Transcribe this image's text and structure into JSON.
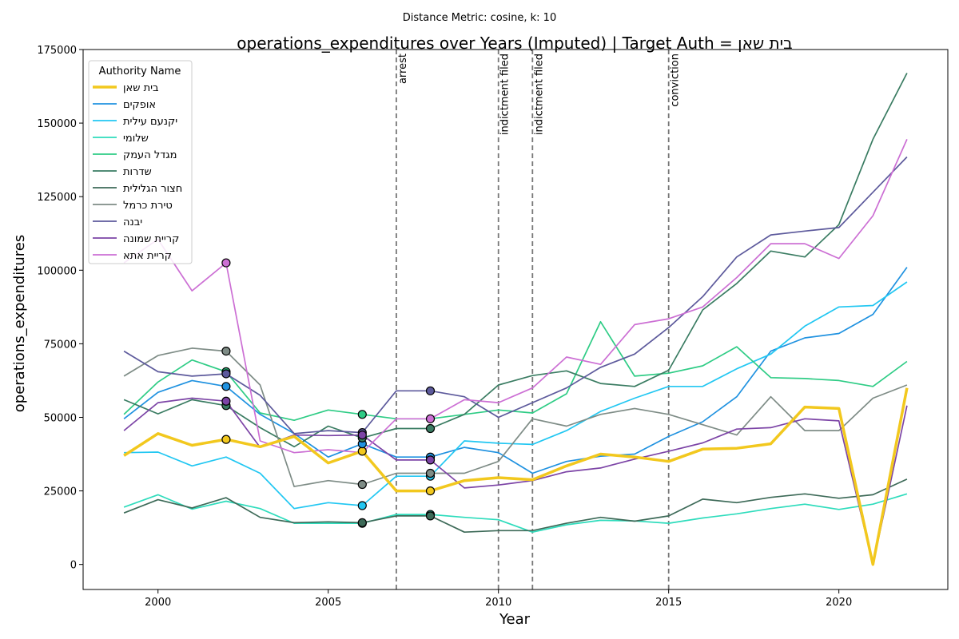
{
  "chart_data": {
    "type": "line",
    "suptitle": "Distance Metric: cosine, k: 10",
    "title": "operations_expenditures over Years (Imputed) | Target Auth = בית שאן",
    "xlabel": "Year",
    "ylabel": "operations_expenditures",
    "xlim": [
      1997.8,
      2023.2
    ],
    "ylim": [
      -8500,
      175000
    ],
    "xticks": [
      2000,
      2005,
      2010,
      2015,
      2020
    ],
    "yticks": [
      0,
      25000,
      50000,
      75000,
      100000,
      125000,
      150000,
      175000
    ],
    "grid": false,
    "legend": {
      "title": "Authority Name",
      "placement": "upper-left"
    },
    "x": [
      1999,
      2000,
      2001,
      2002,
      2003,
      2004,
      2005,
      2006,
      2007,
      2008,
      2009,
      2010,
      2011,
      2012,
      2013,
      2014,
      2015,
      2016,
      2017,
      2018,
      2019,
      2020,
      2021,
      2022
    ],
    "events": [
      {
        "x": 2007,
        "label": "arrest"
      },
      {
        "x": 2010,
        "label": "indictment filed"
      },
      {
        "x": 2011,
        "label": "indictment filed"
      },
      {
        "x": 2015,
        "label": "conviction"
      }
    ],
    "series": [
      {
        "name": "בית שאן",
        "color": "#f2c81e",
        "width": 3.5,
        "target": true,
        "values": [
          37000,
          44500,
          40500,
          42500,
          40000,
          43500,
          34500,
          38500,
          25000,
          25000,
          28500,
          29500,
          28800,
          33500,
          37500,
          36500,
          35000,
          39200,
          39500,
          41000,
          53500,
          53000,
          0,
          60000
        ],
        "markers": [
          {
            "x": 2002,
            "y": 42500
          },
          {
            "x": 2006,
            "y": 38500
          },
          {
            "x": 2008,
            "y": 25000
          }
        ]
      },
      {
        "name": "אופקים",
        "color": "#2092e0",
        "values": [
          49500,
          58500,
          62500,
          60500,
          51000,
          44500,
          36500,
          41000,
          36500,
          36500,
          39800,
          38000,
          31000,
          35000,
          36800,
          37500,
          43500,
          48500,
          57000,
          72500,
          77000,
          78500,
          85000,
          101000
        ],
        "markers": [
          {
            "x": 2002,
            "y": 60500
          },
          {
            "x": 2006,
            "y": 41000
          },
          {
            "x": 2008,
            "y": 36500
          }
        ]
      },
      {
        "name": "יקנעם עילית",
        "color": "#22c7f2",
        "values": [
          38000,
          38200,
          33500,
          36500,
          31000,
          19000,
          21000,
          20000,
          30000,
          30000,
          42000,
          41200,
          40800,
          45500,
          52000,
          56500,
          60500,
          60500,
          66500,
          71500,
          81000,
          87500,
          88000,
          96000
        ],
        "markers": [
          {
            "x": 2006,
            "y": 20000
          },
          {
            "x": 2008,
            "y": 30000
          }
        ]
      },
      {
        "name": "שלומי",
        "color": "#2edcbc",
        "values": [
          19500,
          23700,
          18800,
          21500,
          19000,
          14000,
          14000,
          14000,
          17000,
          17000,
          16000,
          15200,
          11000,
          13500,
          15000,
          14800,
          14000,
          15800,
          17200,
          19000,
          20500,
          18700,
          20500,
          24000
        ],
        "markers": [
          {
            "x": 2006,
            "y": 14000
          },
          {
            "x": 2008,
            "y": 17000
          }
        ]
      },
      {
        "name": "מגדל העמק",
        "color": "#2ecc85",
        "values": [
          51000,
          62000,
          69500,
          65500,
          51500,
          49000,
          52500,
          51000,
          49500,
          49500,
          51000,
          52500,
          51500,
          58000,
          82500,
          64000,
          65000,
          67500,
          74000,
          63500,
          63200,
          62500,
          60500,
          69000
        ],
        "markers": [
          {
            "x": 2002,
            "y": 65500
          },
          {
            "x": 2006,
            "y": 51000
          }
        ]
      },
      {
        "name": "שדרות",
        "color": "#3a7c62",
        "values": [
          56000,
          51200,
          56000,
          54000,
          46500,
          40000,
          47000,
          43000,
          46200,
          46200,
          51000,
          61000,
          64200,
          65800,
          61500,
          60500,
          66000,
          86500,
          95500,
          106500,
          104500,
          115500,
          144500,
          167000
        ],
        "markers": [
          {
            "x": 2002,
            "y": 54000
          },
          {
            "x": 2006,
            "y": 43000
          },
          {
            "x": 2008,
            "y": 46200
          }
        ]
      },
      {
        "name": "חצור הגלילית",
        "color": "#3d6a58",
        "values": [
          17500,
          22000,
          19200,
          22700,
          16000,
          14200,
          14500,
          14200,
          16500,
          16500,
          11000,
          11500,
          11500,
          14000,
          16000,
          14700,
          16500,
          22200,
          21000,
          22800,
          24000,
          22500,
          23700,
          29000
        ],
        "markers": [
          {
            "x": 2006,
            "y": 14200
          },
          {
            "x": 2008,
            "y": 16500
          }
        ]
      },
      {
        "name": "טירת כרמל",
        "color": "#7e8c86",
        "values": [
          64000,
          71000,
          73500,
          72500,
          61000,
          26500,
          28500,
          27200,
          31000,
          31000,
          31000,
          35000,
          49500,
          47000,
          51000,
          53000,
          51000,
          47500,
          44000,
          57000,
          45500,
          45500,
          56500,
          61000
        ],
        "markers": [
          {
            "x": 2002,
            "y": 72500
          },
          {
            "x": 2006,
            "y": 27200
          },
          {
            "x": 2008,
            "y": 31000
          }
        ]
      },
      {
        "name": "יבנה",
        "color": "#5d5a9c",
        "values": [
          72500,
          65500,
          64000,
          64800,
          57500,
          44500,
          45500,
          44800,
          59000,
          59000,
          57000,
          50000,
          55000,
          60000,
          67000,
          71500,
          80500,
          91000,
          104500,
          112000,
          113300,
          114500,
          126500,
          138500
        ],
        "markers": [
          {
            "x": 2002,
            "y": 64800
          },
          {
            "x": 2006,
            "y": 44800
          },
          {
            "x": 2008,
            "y": 59000
          }
        ]
      },
      {
        "name": "קריית שמונה",
        "color": "#7c44a6",
        "values": [
          45500,
          55000,
          56500,
          55500,
          39800,
          44000,
          43800,
          44000,
          35500,
          35500,
          26000,
          27000,
          28500,
          31500,
          32800,
          35800,
          38500,
          41300,
          46000,
          46500,
          49500,
          48800,
          0,
          54000
        ],
        "markers": [
          {
            "x": 2002,
            "y": 55500
          },
          {
            "x": 2006,
            "y": 44000
          },
          {
            "x": 2008,
            "y": 35500
          }
        ]
      },
      {
        "name": "קריית אתא",
        "color": "#cc6fd4",
        "values": [
          102500,
          110500,
          93000,
          102500,
          42000,
          38000,
          39000,
          38000,
          49500,
          49500,
          56000,
          55000,
          60000,
          70500,
          68000,
          81500,
          83500,
          87500,
          97500,
          109000,
          109000,
          104000,
          118500,
          144500
        ],
        "markers": [
          {
            "x": 2002,
            "y": 102500
          },
          {
            "x": 2008,
            "y": 49500
          }
        ]
      }
    ]
  }
}
